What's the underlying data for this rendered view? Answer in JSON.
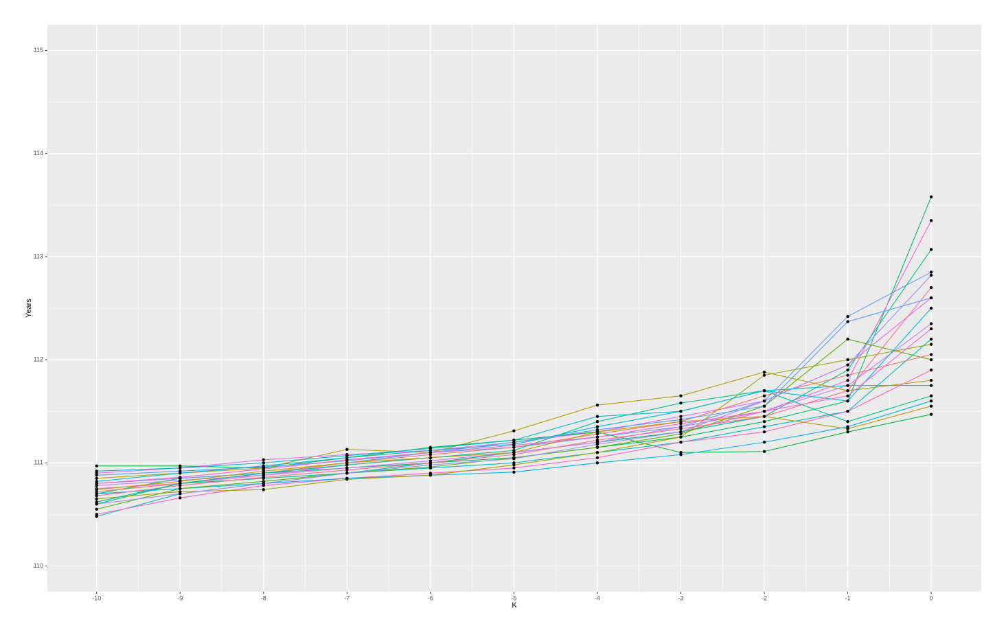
{
  "chart_data": {
    "type": "line",
    "x_label": "K",
    "y_label": "Years",
    "x": [
      -10,
      -9,
      -8,
      -7,
      -6,
      -5,
      -4,
      -3,
      -2,
      -1,
      0
    ],
    "xlim": [
      -10.59,
      0.6
    ],
    "xticks": [
      -10,
      -9,
      -8,
      -7,
      -6,
      -5,
      -4,
      -3,
      -2,
      -1,
      0
    ],
    "ylim": [
      109.75,
      115.25
    ],
    "yticks": [
      110,
      111,
      112,
      113,
      114,
      115
    ],
    "grid": true,
    "minor_grid": true,
    "points": true,
    "point_color": "#000000",
    "series": [
      {
        "color": "#00BE67",
        "values": [
          110.7,
          110.85,
          110.9,
          110.95,
          111.0,
          111.05,
          111.15,
          111.25,
          111.4,
          111.6,
          113.58
        ]
      },
      {
        "color": "#F564E3",
        "values": [
          110.75,
          110.8,
          110.88,
          110.98,
          111.05,
          111.1,
          111.2,
          111.3,
          111.5,
          111.8,
          113.35
        ]
      },
      {
        "color": "#00C08B",
        "values": [
          110.6,
          110.8,
          110.85,
          110.9,
          111.0,
          111.1,
          111.2,
          111.3,
          111.45,
          111.9,
          113.07
        ]
      },
      {
        "color": "#619CFF",
        "values": [
          110.8,
          110.85,
          110.9,
          111.0,
          111.1,
          111.15,
          111.25,
          111.35,
          111.6,
          112.42,
          112.85
        ]
      },
      {
        "color": "#B79F00",
        "values": [
          110.85,
          110.9,
          110.95,
          111.13,
          111.1,
          111.31,
          111.56,
          111.65,
          111.88,
          111.7,
          111.8
        ]
      },
      {
        "color": "#00BFC4",
        "values": [
          110.48,
          110.7,
          110.8,
          110.9,
          110.95,
          111.0,
          111.1,
          111.2,
          111.35,
          111.5,
          112.2
        ]
      },
      {
        "color": "#E76BF3",
        "values": [
          110.9,
          110.95,
          111.03,
          111.08,
          111.12,
          111.2,
          111.3,
          111.45,
          111.6,
          111.95,
          112.6
        ]
      },
      {
        "color": "#00BA38",
        "values": [
          110.97,
          110.97,
          110.95,
          111.05,
          111.15,
          111.22,
          111.3,
          111.1,
          111.11,
          111.3,
          111.47
        ]
      },
      {
        "color": "#FF61C3",
        "values": [
          110.5,
          110.66,
          110.78,
          110.85,
          110.9,
          110.95,
          111.05,
          111.2,
          111.3,
          111.5,
          111.9
        ]
      },
      {
        "color": "#00B4F0",
        "values": [
          110.7,
          110.75,
          110.8,
          110.85,
          110.88,
          110.91,
          111.0,
          111.08,
          111.2,
          111.35,
          111.6
        ]
      },
      {
        "color": "#A3A500",
        "values": [
          110.65,
          110.72,
          110.74,
          110.84,
          110.88,
          110.98,
          111.1,
          111.25,
          111.85,
          112.0,
          112.15
        ]
      },
      {
        "color": "#C77CFF",
        "values": [
          110.78,
          110.83,
          110.88,
          110.95,
          111.02,
          111.1,
          111.2,
          111.35,
          111.5,
          111.75,
          112.35
        ]
      },
      {
        "color": "#53B400",
        "values": [
          110.55,
          110.75,
          110.82,
          110.9,
          110.96,
          111.05,
          111.15,
          111.28,
          111.55,
          112.2,
          112.0
        ]
      },
      {
        "color": "#F8766D",
        "values": [
          110.72,
          110.8,
          110.9,
          111.0,
          111.08,
          111.15,
          111.28,
          111.4,
          111.65,
          111.85,
          112.05
        ]
      },
      {
        "color": "#00B6EB",
        "values": [
          110.82,
          110.9,
          110.97,
          111.05,
          111.12,
          111.18,
          111.35,
          111.5,
          111.7,
          111.6,
          112.5
        ]
      },
      {
        "color": "#FF6C91",
        "values": [
          110.68,
          110.78,
          110.86,
          110.93,
          111.0,
          111.08,
          111.22,
          111.33,
          111.45,
          111.7,
          112.7
        ]
      },
      {
        "color": "#00C094",
        "values": [
          110.62,
          110.8,
          110.9,
          110.98,
          111.05,
          111.12,
          111.4,
          111.58,
          111.7,
          111.4,
          111.65
        ]
      },
      {
        "color": "#529EFF",
        "values": [
          110.88,
          110.92,
          110.96,
          111.02,
          111.1,
          111.2,
          111.32,
          111.42,
          111.55,
          112.37,
          112.6
        ]
      },
      {
        "color": "#C49A00",
        "values": [
          110.74,
          110.82,
          110.92,
          111.0,
          111.05,
          111.1,
          111.3,
          111.4,
          111.45,
          111.33,
          111.55
        ]
      },
      {
        "color": "#A58AFF",
        "values": [
          110.6,
          110.7,
          110.8,
          110.9,
          110.98,
          111.04,
          111.18,
          111.3,
          111.6,
          111.95,
          112.82
        ]
      },
      {
        "color": "#00BDD0",
        "values": [
          110.92,
          110.95,
          111.0,
          111.07,
          111.14,
          111.22,
          111.45,
          111.5,
          111.7,
          111.75,
          111.75
        ]
      },
      {
        "color": "#FB61D7",
        "values": [
          110.8,
          110.86,
          110.94,
          111.03,
          111.1,
          111.17,
          111.25,
          111.38,
          111.5,
          111.65,
          112.3
        ]
      }
    ]
  }
}
